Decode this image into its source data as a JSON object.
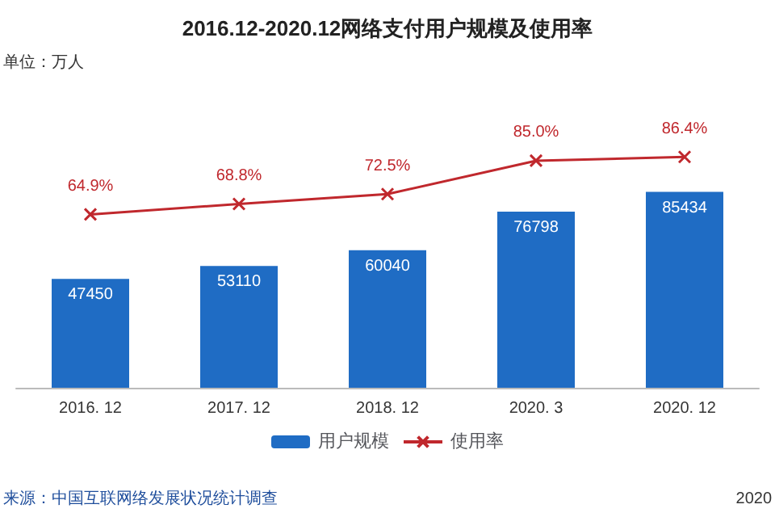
{
  "chart_data": {
    "type": "bar",
    "title": "2016.12-2020.12网络支付用户规模及使用率",
    "categories": [
      "2016. 12",
      "2017. 12",
      "2018. 12",
      "2020. 3",
      "2020. 12"
    ],
    "series": [
      {
        "name": "用户规模",
        "color": "#1f6cc4",
        "values": [
          47450,
          53110,
          60040,
          76798,
          85434
        ]
      },
      {
        "name": "使用率",
        "type": "line",
        "axis": "y2",
        "color": "#c0282d",
        "marker": "cross",
        "values": [
          64.9,
          68.8,
          72.5,
          85.0,
          86.4
        ],
        "value_labels": [
          "64.9%",
          "68.8%",
          "72.5%",
          "85.0%",
          "86.4%"
        ]
      }
    ],
    "data_labels": true,
    "legend": "bottom",
    "annotations": [
      "单位：万人",
      "来源：中国互联网络发展状况统计调查",
      "2020"
    ]
  }
}
